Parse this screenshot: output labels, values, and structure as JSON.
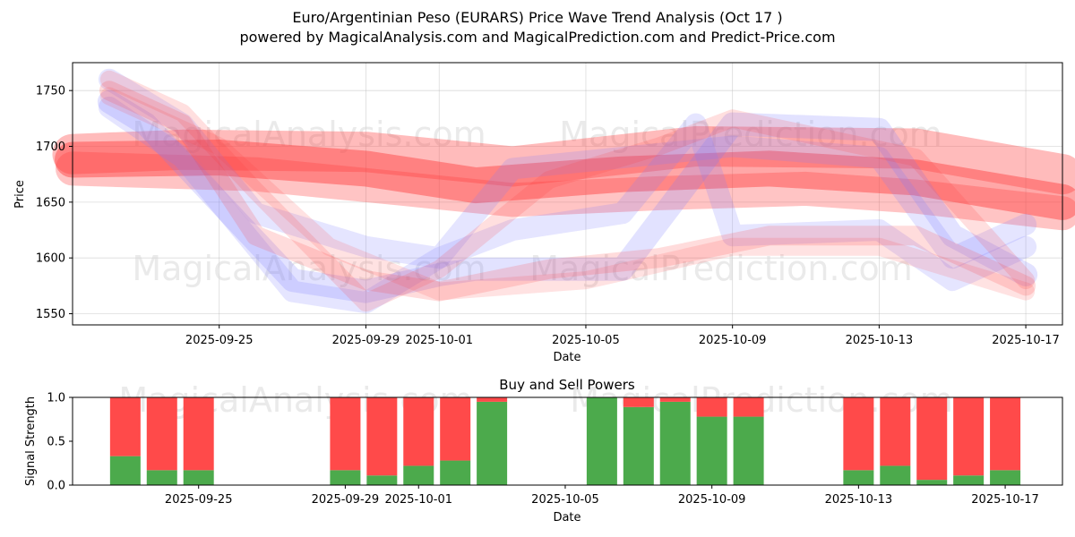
{
  "title_line1": "Euro/Argentinian Peso (EURARS) Price Wave Trend Analysis (Oct 17 )",
  "title_line2": "powered by MagicalAnalysis.com and MagicalPrediction.com and Predict-Price.com",
  "watermarks": [
    "MagicalAnalysis.com",
    "MagicalPrediction.com"
  ],
  "colors": {
    "buy": "#4caa4c",
    "sell": "#ff4a4a",
    "band_red": "#ff3b3b",
    "band_blue": "#7b7bff"
  },
  "chart_data": [
    {
      "type": "line",
      "xlabel": "Date",
      "ylabel": "Price",
      "xlim": [
        "2025-09-21",
        "2025-10-18"
      ],
      "ylim": [
        1540,
        1775
      ],
      "yticks": [
        1550,
        1600,
        1650,
        1700,
        1750
      ],
      "xticks": [
        "2025-09-25",
        "2025-09-29",
        "2025-10-01",
        "2025-10-05",
        "2025-10-09",
        "2025-10-13",
        "2025-10-17"
      ],
      "grid": true,
      "series": [
        {
          "name": "wave-red-1",
          "color": "red",
          "width": 45,
          "opacity": 0.35,
          "x": [
            "2025-09-21",
            "2025-09-24",
            "2025-09-29",
            "2025-10-03",
            "2025-10-08",
            "2025-10-14",
            "2025-10-18"
          ],
          "y": [
            1693,
            1697,
            1695,
            1682,
            1700,
            1698,
            1675
          ]
        },
        {
          "name": "wave-red-2",
          "color": "red",
          "width": 40,
          "opacity": 0.45,
          "x": [
            "2025-09-21",
            "2025-09-25",
            "2025-09-29",
            "2025-10-02",
            "2025-10-06",
            "2025-10-10",
            "2025-10-14",
            "2025-10-18"
          ],
          "y": [
            1688,
            1690,
            1680,
            1665,
            1675,
            1680,
            1672,
            1650
          ]
        },
        {
          "name": "wave-red-3",
          "color": "red",
          "width": 38,
          "opacity": 0.3,
          "x": [
            "2025-09-21",
            "2025-09-26",
            "2025-09-30",
            "2025-10-03",
            "2025-10-07",
            "2025-10-11",
            "2025-10-14",
            "2025-10-18"
          ],
          "y": [
            1680,
            1675,
            1662,
            1652,
            1658,
            1662,
            1655,
            1640
          ]
        },
        {
          "name": "wave-blue-1",
          "color": "blue",
          "width": 26,
          "opacity": 0.22,
          "x": [
            "2025-09-22",
            "2025-09-23",
            "2025-09-25",
            "2025-09-27",
            "2025-09-29",
            "2025-10-01",
            "2025-10-02",
            "2025-10-06",
            "2025-10-09",
            "2025-10-13",
            "2025-10-15",
            "2025-10-17"
          ],
          "y": [
            1740,
            1720,
            1650,
            1580,
            1570,
            1585,
            1590,
            1590,
            1720,
            1715,
            1620,
            1585
          ]
        },
        {
          "name": "wave-blue-2",
          "color": "blue",
          "width": 24,
          "opacity": 0.2,
          "x": [
            "2025-09-22",
            "2025-09-24",
            "2025-09-26",
            "2025-09-29",
            "2025-10-01",
            "2025-10-03",
            "2025-10-06",
            "2025-10-09",
            "2025-10-13",
            "2025-10-15",
            "2025-10-17"
          ],
          "y": [
            1760,
            1720,
            1640,
            1610,
            1600,
            1680,
            1690,
            1700,
            1690,
            1600,
            1630
          ]
        },
        {
          "name": "wave-blue-3",
          "color": "blue",
          "width": 24,
          "opacity": 0.2,
          "x": [
            "2025-09-22",
            "2025-09-24",
            "2025-09-27",
            "2025-09-29",
            "2025-10-01",
            "2025-10-03",
            "2025-10-06",
            "2025-10-08",
            "2025-10-09",
            "2025-10-13",
            "2025-10-15",
            "2025-10-17"
          ],
          "y": [
            1735,
            1690,
            1570,
            1560,
            1600,
            1625,
            1640,
            1720,
            1620,
            1625,
            1580,
            1610
          ]
        },
        {
          "name": "wave-pink-1",
          "color": "red",
          "width": 22,
          "opacity": 0.18,
          "x": [
            "2025-09-22",
            "2025-09-24",
            "2025-09-26",
            "2025-09-29",
            "2025-10-01",
            "2025-10-04",
            "2025-10-07",
            "2025-10-10",
            "2025-10-14",
            "2025-10-17"
          ],
          "y": [
            1750,
            1720,
            1620,
            1580,
            1570,
            1590,
            1600,
            1620,
            1620,
            1575
          ]
        },
        {
          "name": "wave-pink-2",
          "color": "red",
          "width": 20,
          "opacity": 0.16,
          "x": [
            "2025-09-22",
            "2025-09-24",
            "2025-09-26",
            "2025-09-29",
            "2025-10-01",
            "2025-10-04",
            "2025-10-07",
            "2025-10-09",
            "2025-10-14",
            "2025-10-17"
          ],
          "y": [
            1760,
            1730,
            1660,
            1560,
            1590,
            1670,
            1700,
            1725,
            1690,
            1580
          ]
        },
        {
          "name": "wave-pink-3",
          "color": "red",
          "width": 20,
          "opacity": 0.15,
          "x": [
            "2025-09-22",
            "2025-09-25",
            "2025-09-28",
            "2025-10-01",
            "2025-10-05",
            "2025-10-09",
            "2025-10-13",
            "2025-10-17"
          ],
          "y": [
            1745,
            1700,
            1610,
            1570,
            1580,
            1610,
            1610,
            1570
          ]
        }
      ]
    },
    {
      "type": "bar",
      "title": "Buy and Sell Powers",
      "xlabel": "Date",
      "ylabel": "Signal Strength",
      "xlim": [
        "2025-09-21",
        "2025-10-18"
      ],
      "ylim": [
        0,
        1
      ],
      "yticks": [
        "0.0",
        "0.5",
        "1.0"
      ],
      "xticks": [
        "2025-09-25",
        "2025-09-29",
        "2025-10-01",
        "2025-10-05",
        "2025-10-09",
        "2025-10-13",
        "2025-10-17"
      ],
      "categories": [
        "2025-09-23",
        "2025-09-24",
        "2025-09-25",
        "2025-09-29",
        "2025-09-30",
        "2025-10-01",
        "2025-10-02",
        "2025-10-03",
        "2025-10-06",
        "2025-10-07",
        "2025-10-08",
        "2025-10-09",
        "2025-10-10",
        "2025-10-13",
        "2025-10-14",
        "2025-10-15",
        "2025-10-16",
        "2025-10-17"
      ],
      "series": [
        {
          "name": "Buy",
          "values": [
            0.33,
            0.17,
            0.17,
            0.17,
            0.11,
            0.22,
            0.28,
            0.95,
            1.0,
            0.89,
            0.95,
            0.78,
            0.78,
            0.17,
            0.22,
            0.06,
            0.11,
            0.17
          ]
        },
        {
          "name": "Sell",
          "values": [
            0.67,
            0.83,
            0.83,
            0.83,
            0.89,
            0.78,
            0.72,
            0.05,
            0.0,
            0.11,
            0.05,
            0.22,
            0.22,
            0.83,
            0.78,
            0.94,
            0.89,
            0.83
          ]
        }
      ]
    }
  ]
}
